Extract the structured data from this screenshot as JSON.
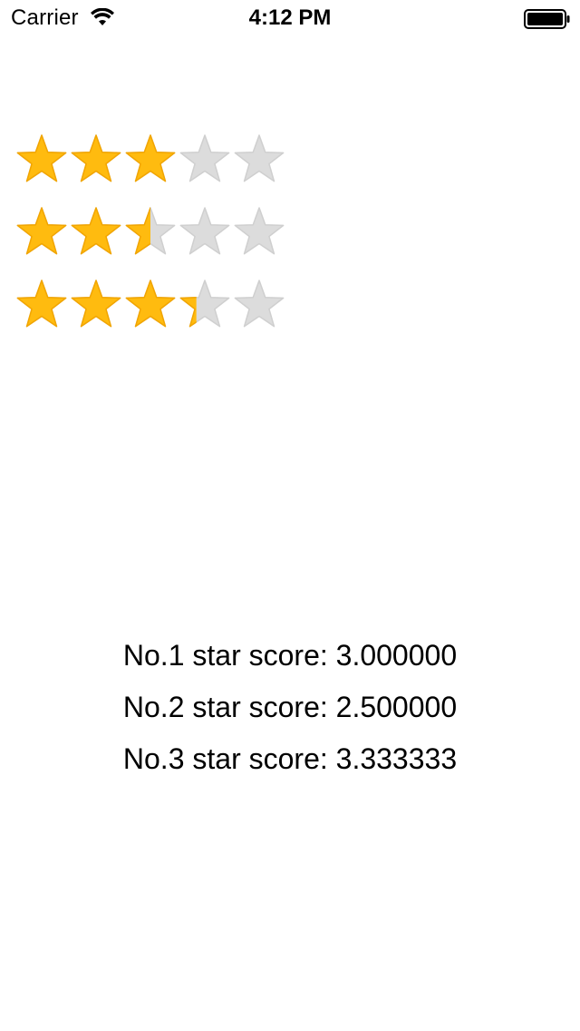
{
  "status_bar": {
    "carrier": "Carrier",
    "time": "4:12 PM",
    "wifi_icon": "wifi-icon",
    "battery_icon": "battery-icon"
  },
  "colors": {
    "star_filled": "#FFBB0F",
    "star_filled_stroke": "#F2A500",
    "star_empty": "#DCDCDC",
    "star_empty_stroke": "#CFCFCF"
  },
  "ratings": [
    {
      "score": 3.0,
      "max": 5
    },
    {
      "score": 2.5,
      "max": 5
    },
    {
      "score": 3.333333,
      "max": 5
    }
  ],
  "score_labels": [
    "No.1 star score: 3.000000",
    "No.2 star score: 2.500000",
    "No.3 star score: 3.333333"
  ]
}
